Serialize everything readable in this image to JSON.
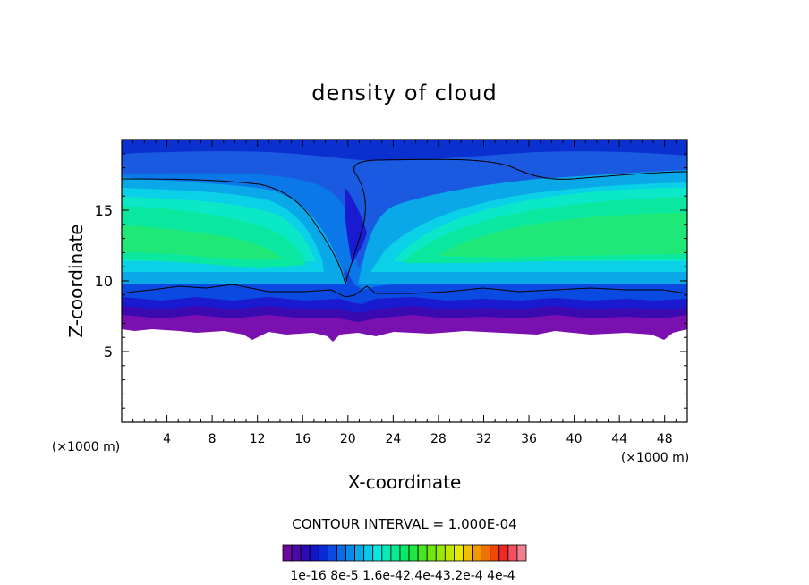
{
  "chart_data": {
    "type": "heatmap",
    "title": "density of cloud",
    "xlabel": "X-coordinate",
    "ylabel": "Z-coordinate",
    "x_unit": "(×1000 m)",
    "z_unit": "(×1000 m)",
    "xlim": [
      0,
      50
    ],
    "ylim": [
      0,
      20
    ],
    "x_ticks": [
      "4",
      "8",
      "12",
      "16",
      "20",
      "24",
      "28",
      "32",
      "36",
      "40",
      "44",
      "48"
    ],
    "y_ticks": [
      "5",
      "10",
      "15"
    ],
    "contour_interval_text": "CONTOUR INTERVAL = 1.000E-04",
    "colorbar_tick_labels": [
      "1e-16",
      "8e-5",
      "1.6e-4",
      "2.4e-4",
      "3.2e-4",
      "4e-4"
    ],
    "colorbar_label_text": "1e-16 8e-5 1.6e-42.4e-43.2e-4 4e-4",
    "colorbar_range": [
      1e-16,
      0.0004
    ],
    "colormap": [
      "#6a0a9c",
      "#4a0aa8",
      "#2c0ab8",
      "#1414c8",
      "#0a2ad8",
      "#0a4ae0",
      "#0a6ae8",
      "#0a8ae8",
      "#0aa8e8",
      "#0ac8e8",
      "#0ae8e0",
      "#0ae8b8",
      "#0ae890",
      "#0ae868",
      "#20e840",
      "#48e820",
      "#70e810",
      "#98e808",
      "#c0e800",
      "#e8e800",
      "#f0c000",
      "#f09800",
      "#f07000",
      "#f04800",
      "#f02828",
      "#f05060",
      "#f08090"
    ],
    "levels_approx": {
      "cloud_base_km": [
        6.0,
        7.5
      ],
      "highest_density_band_km": [
        11,
        16.5
      ],
      "cloud_top_km": 20,
      "max_value_band": "1.6e-4 to 2.0e-4",
      "min_nonzero_value_band": "1e-16 to 1.6e-5"
    }
  }
}
